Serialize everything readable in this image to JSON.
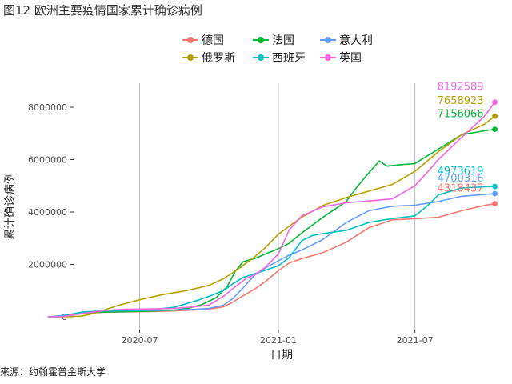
{
  "page": {
    "title": "图12 欧洲主要疫情国家累计确诊病例",
    "source": "来源：约翰霍普金斯大学"
  },
  "chart_data": {
    "type": "line",
    "title": "",
    "xlabel": "日期",
    "ylabel": "累计确诊病例",
    "x_tick_labels": [
      "2020-07",
      "2021-01",
      "2021-07"
    ],
    "y_tick_labels": [
      "0",
      "2000000",
      "4000000",
      "6000000",
      "8000000"
    ],
    "x_ticks": [
      "2020-07-01",
      "2021-01-01",
      "2021-07-01"
    ],
    "y_ticks": [
      0,
      2000000,
      4000000,
      6000000,
      8000000
    ],
    "xlim": [
      "2020-01-01",
      "2021-10-25"
    ],
    "ylim": [
      -200000,
      8700000
    ],
    "grid": "vertical major lines",
    "legend_position": "top",
    "series": [
      {
        "name": "德国",
        "color": "#F8766D",
        "end_label": "4318437",
        "points": [
          [
            "2020-03-01",
            0
          ],
          [
            "2020-03-20",
            20000
          ],
          [
            "2020-04-15",
            130000
          ],
          [
            "2020-05-15",
            175000
          ],
          [
            "2020-06-15",
            188000
          ],
          [
            "2020-07-15",
            200000
          ],
          [
            "2020-08-15",
            225000
          ],
          [
            "2020-09-15",
            265000
          ],
          [
            "2020-10-01",
            295000
          ],
          [
            "2020-10-20",
            380000
          ],
          [
            "2020-11-01",
            550000
          ],
          [
            "2020-11-15",
            800000
          ],
          [
            "2020-12-01",
            1070000
          ],
          [
            "2020-12-15",
            1350000
          ],
          [
            "2021-01-01",
            1760000
          ],
          [
            "2021-01-15",
            2050000
          ],
          [
            "2021-02-01",
            2220000
          ],
          [
            "2021-03-01",
            2450000
          ],
          [
            "2021-04-01",
            2850000
          ],
          [
            "2021-05-01",
            3400000
          ],
          [
            "2021-06-01",
            3700000
          ],
          [
            "2021-07-01",
            3740000
          ],
          [
            "2021-08-01",
            3800000
          ],
          [
            "2021-09-01",
            4050000
          ],
          [
            "2021-10-01",
            4250000
          ],
          [
            "2021-10-15",
            4318437
          ]
        ]
      },
      {
        "name": "法国",
        "color": "#00BA38",
        "end_label": "7156066",
        "points": [
          [
            "2020-03-01",
            0
          ],
          [
            "2020-03-20",
            10000
          ],
          [
            "2020-04-15",
            140000
          ],
          [
            "2020-05-15",
            180000
          ],
          [
            "2020-06-15",
            195000
          ],
          [
            "2020-07-15",
            215000
          ],
          [
            "2020-08-15",
            250000
          ],
          [
            "2020-09-01",
            310000
          ],
          [
            "2020-09-20",
            450000
          ],
          [
            "2020-10-10",
            720000
          ],
          [
            "2020-10-25",
            1150000
          ],
          [
            "2020-11-05",
            1750000
          ],
          [
            "2020-11-15",
            2100000
          ],
          [
            "2020-12-01",
            2230000
          ],
          [
            "2020-12-15",
            2400000
          ],
          [
            "2021-01-01",
            2600000
          ],
          [
            "2021-01-15",
            2800000
          ],
          [
            "2021-02-01",
            3200000
          ],
          [
            "2021-03-01",
            3800000
          ],
          [
            "2021-04-01",
            4400000
          ],
          [
            "2021-04-15",
            4950000
          ],
          [
            "2021-05-01",
            5500000
          ],
          [
            "2021-05-15",
            5950000
          ],
          [
            "2021-05-25",
            5750000
          ],
          [
            "2021-06-10",
            5800000
          ],
          [
            "2021-07-01",
            5850000
          ],
          [
            "2021-08-01",
            6400000
          ],
          [
            "2021-09-01",
            6950000
          ],
          [
            "2021-10-01",
            7100000
          ],
          [
            "2021-10-15",
            7156066
          ]
        ]
      },
      {
        "name": "意大利",
        "color": "#619CFF",
        "end_label": "4700316",
        "points": [
          [
            "2020-03-01",
            0
          ],
          [
            "2020-03-20",
            50000
          ],
          [
            "2020-04-15",
            165000
          ],
          [
            "2020-05-15",
            222000
          ],
          [
            "2020-06-15",
            237000
          ],
          [
            "2020-07-15",
            244000
          ],
          [
            "2020-08-15",
            255000
          ],
          [
            "2020-09-15",
            290000
          ],
          [
            "2020-10-01",
            320000
          ],
          [
            "2020-10-20",
            440000
          ],
          [
            "2020-11-01",
            680000
          ],
          [
            "2020-11-15",
            1100000
          ],
          [
            "2020-12-01",
            1600000
          ],
          [
            "2020-12-15",
            1870000
          ],
          [
            "2021-01-01",
            2140000
          ],
          [
            "2021-01-15",
            2350000
          ],
          [
            "2021-02-01",
            2550000
          ],
          [
            "2021-03-01",
            2950000
          ],
          [
            "2021-04-01",
            3600000
          ],
          [
            "2021-05-01",
            4050000
          ],
          [
            "2021-06-01",
            4220000
          ],
          [
            "2021-07-01",
            4260000
          ],
          [
            "2021-08-01",
            4400000
          ],
          [
            "2021-09-01",
            4600000
          ],
          [
            "2021-10-01",
            4670000
          ],
          [
            "2021-10-15",
            4700316
          ]
        ]
      },
      {
        "name": "俄罗斯",
        "color": "#B79F00",
        "end_label": "7658923",
        "points": [
          [
            "2020-03-01",
            0
          ],
          [
            "2020-03-20",
            100
          ],
          [
            "2020-04-15",
            25000
          ],
          [
            "2020-05-01",
            130000
          ],
          [
            "2020-05-15",
            260000
          ],
          [
            "2020-06-01",
            420000
          ],
          [
            "2020-07-01",
            650000
          ],
          [
            "2020-08-01",
            850000
          ],
          [
            "2020-09-01",
            1000000
          ],
          [
            "2020-10-01",
            1200000
          ],
          [
            "2020-10-20",
            1450000
          ],
          [
            "2020-11-05",
            1750000
          ],
          [
            "2020-12-01",
            2300000
          ],
          [
            "2020-12-15",
            2650000
          ],
          [
            "2021-01-01",
            3150000
          ],
          [
            "2021-01-15",
            3450000
          ],
          [
            "2021-02-01",
            3800000
          ],
          [
            "2021-03-01",
            4250000
          ],
          [
            "2021-04-01",
            4550000
          ],
          [
            "2021-05-01",
            4800000
          ],
          [
            "2021-06-01",
            5050000
          ],
          [
            "2021-07-01",
            5550000
          ],
          [
            "2021-08-01",
            6300000
          ],
          [
            "2021-09-01",
            6950000
          ],
          [
            "2021-10-01",
            7350000
          ],
          [
            "2021-10-15",
            7658923
          ]
        ]
      },
      {
        "name": "西班牙",
        "color": "#00BFC4",
        "end_label": "4973619",
        "points": [
          [
            "2020-03-01",
            0
          ],
          [
            "2020-03-20",
            20000
          ],
          [
            "2020-04-15",
            180000
          ],
          [
            "2020-05-15",
            230000
          ],
          [
            "2020-06-15",
            245000
          ],
          [
            "2020-07-15",
            265000
          ],
          [
            "2020-08-15",
            360000
          ],
          [
            "2020-09-15",
            620000
          ],
          [
            "2020-10-01",
            780000
          ],
          [
            "2020-10-20",
            1000000
          ],
          [
            "2020-11-01",
            1250000
          ],
          [
            "2020-11-15",
            1500000
          ],
          [
            "2020-12-01",
            1650000
          ],
          [
            "2020-12-15",
            1780000
          ],
          [
            "2021-01-01",
            1950000
          ],
          [
            "2021-01-15",
            2250000
          ],
          [
            "2021-02-01",
            2900000
          ],
          [
            "2021-02-15",
            3100000
          ],
          [
            "2021-03-01",
            3180000
          ],
          [
            "2021-04-01",
            3300000
          ],
          [
            "2021-05-01",
            3600000
          ],
          [
            "2021-06-01",
            3750000
          ],
          [
            "2021-07-01",
            3850000
          ],
          [
            "2021-07-20",
            4300000
          ],
          [
            "2021-08-01",
            4650000
          ],
          [
            "2021-09-01",
            4920000
          ],
          [
            "2021-10-01",
            4960000
          ],
          [
            "2021-10-15",
            4973619
          ]
        ]
      },
      {
        "name": "英国",
        "color": "#F564E3",
        "end_label": "8192589",
        "points": [
          [
            "2020-03-01",
            0
          ],
          [
            "2020-03-20",
            5000
          ],
          [
            "2020-04-15",
            120000
          ],
          [
            "2020-05-15",
            240000
          ],
          [
            "2020-06-15",
            290000
          ],
          [
            "2020-07-15",
            300000
          ],
          [
            "2020-08-15",
            320000
          ],
          [
            "2020-09-15",
            390000
          ],
          [
            "2020-10-01",
            450000
          ],
          [
            "2020-10-20",
            780000
          ],
          [
            "2020-11-05",
            1150000
          ],
          [
            "2020-11-20",
            1480000
          ],
          [
            "2020-12-01",
            1600000
          ],
          [
            "2020-12-15",
            1900000
          ],
          [
            "2021-01-01",
            2400000
          ],
          [
            "2021-01-15",
            3300000
          ],
          [
            "2021-02-01",
            3850000
          ],
          [
            "2021-03-01",
            4200000
          ],
          [
            "2021-04-01",
            4350000
          ],
          [
            "2021-05-01",
            4420000
          ],
          [
            "2021-06-01",
            4500000
          ],
          [
            "2021-07-01",
            5000000
          ],
          [
            "2021-07-20",
            5600000
          ],
          [
            "2021-08-01",
            6000000
          ],
          [
            "2021-09-01",
            6850000
          ],
          [
            "2021-10-01",
            7650000
          ],
          [
            "2021-10-15",
            8192589
          ]
        ]
      }
    ]
  }
}
